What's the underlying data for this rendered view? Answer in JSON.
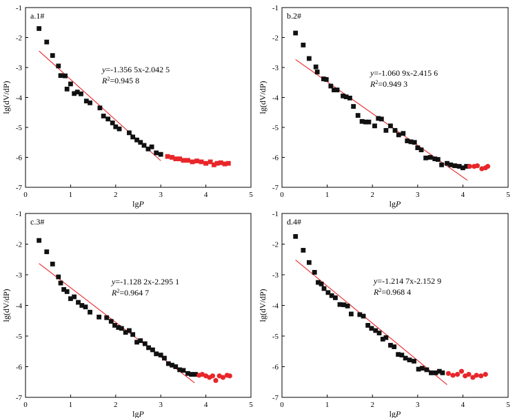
{
  "colors": {
    "black_points": "#111111",
    "red_points": "#e8262a",
    "fit_line": "#e8262a",
    "axis": "#000000"
  },
  "chart_data": [
    {
      "type": "scatter",
      "panel_label": "a.1#",
      "xlabel_prefix": "lg",
      "xlabel_var": "P",
      "ylabel": "lg(dV/dP)",
      "xlim": [
        0,
        5
      ],
      "ylim": [
        -7,
        -1
      ],
      "xticks": [
        0,
        1,
        2,
        3,
        4,
        5
      ],
      "yticks": [
        -1,
        -2,
        -3,
        -4,
        -5,
        -6,
        -7
      ],
      "equation_y": "y",
      "equation_rest": "=-1.356 5x-2.042 5",
      "r2_text": "=0.945 8",
      "red_marker": "square",
      "fit": {
        "slope": -1.3565,
        "intercept": -2.0425,
        "x_range": [
          0.3,
          3.0
        ]
      },
      "series": [
        {
          "marker": "square",
          "color": "black",
          "points": [
            [
              0.3,
              -1.7
            ],
            [
              0.47,
              -2.15
            ],
            [
              0.6,
              -2.6
            ],
            [
              0.73,
              -2.95
            ],
            [
              0.78,
              -3.27
            ],
            [
              0.88,
              -3.28
            ],
            [
              0.92,
              -3.72
            ],
            [
              1.0,
              -3.55
            ],
            [
              1.08,
              -3.87
            ],
            [
              1.15,
              -3.82
            ],
            [
              1.23,
              -3.88
            ],
            [
              1.35,
              -4.12
            ],
            [
              1.43,
              -4.18
            ],
            [
              1.65,
              -4.35
            ],
            [
              1.73,
              -4.62
            ],
            [
              1.83,
              -4.72
            ],
            [
              1.93,
              -4.85
            ],
            [
              2.0,
              -4.98
            ],
            [
              2.08,
              -5.05
            ],
            [
              2.3,
              -5.18
            ],
            [
              2.38,
              -5.32
            ],
            [
              2.47,
              -5.42
            ],
            [
              2.55,
              -5.5
            ],
            [
              2.63,
              -5.6
            ],
            [
              2.72,
              -5.72
            ],
            [
              2.8,
              -5.65
            ],
            [
              2.9,
              -5.85
            ],
            [
              3.0,
              -5.9
            ]
          ]
        },
        {
          "marker": "square",
          "color": "red",
          "points": [
            [
              3.15,
              -5.97
            ],
            [
              3.25,
              -6.0
            ],
            [
              3.33,
              -6.05
            ],
            [
              3.42,
              -6.05
            ],
            [
              3.5,
              -6.1
            ],
            [
              3.6,
              -6.1
            ],
            [
              3.7,
              -6.15
            ],
            [
              3.8,
              -6.12
            ],
            [
              3.9,
              -6.15
            ],
            [
              4.0,
              -6.2
            ],
            [
              4.1,
              -6.15
            ],
            [
              4.18,
              -6.25
            ],
            [
              4.25,
              -6.2
            ],
            [
              4.33,
              -6.18
            ],
            [
              4.42,
              -6.22
            ],
            [
              4.5,
              -6.2
            ]
          ]
        }
      ]
    },
    {
      "type": "scatter",
      "panel_label": "b.2#",
      "xlabel_prefix": "lg",
      "xlabel_var": "P",
      "ylabel": "lg(dV/dP)",
      "xlim": [
        0,
        5
      ],
      "ylim": [
        -7,
        -1
      ],
      "xticks": [
        0,
        1,
        2,
        3,
        4,
        5
      ],
      "yticks": [
        -1,
        -2,
        -3,
        -4,
        -5,
        -6,
        -7
      ],
      "equation_y": "y",
      "equation_rest": "=-1.060 9x-2.415 6",
      "r2_text": "=0.949 3",
      "red_marker": "circle",
      "fit": {
        "slope": -1.0609,
        "intercept": -2.4156,
        "x_range": [
          0.3,
          4.1
        ]
      },
      "series": [
        {
          "marker": "square",
          "color": "black",
          "points": [
            [
              0.3,
              -1.85
            ],
            [
              0.47,
              -2.25
            ],
            [
              0.6,
              -2.7
            ],
            [
              0.75,
              -2.98
            ],
            [
              0.78,
              -3.15
            ],
            [
              0.92,
              -3.38
            ],
            [
              0.98,
              -3.4
            ],
            [
              1.08,
              -3.62
            ],
            [
              1.15,
              -3.75
            ],
            [
              1.22,
              -3.75
            ],
            [
              1.35,
              -3.95
            ],
            [
              1.42,
              -3.98
            ],
            [
              1.5,
              -4.02
            ],
            [
              1.58,
              -4.3
            ],
            [
              1.68,
              -4.6
            ],
            [
              1.77,
              -4.8
            ],
            [
              1.85,
              -4.82
            ],
            [
              1.92,
              -4.82
            ],
            [
              2.05,
              -4.95
            ],
            [
              2.13,
              -4.7
            ],
            [
              2.2,
              -4.72
            ],
            [
              2.3,
              -5.1
            ],
            [
              2.4,
              -4.95
            ],
            [
              2.5,
              -5.1
            ],
            [
              2.58,
              -5.25
            ],
            [
              2.68,
              -5.2
            ],
            [
              2.77,
              -5.45
            ],
            [
              2.85,
              -5.48
            ],
            [
              2.93,
              -5.5
            ],
            [
              3.0,
              -5.68
            ],
            [
              3.08,
              -5.75
            ],
            [
              3.18,
              -6.02
            ],
            [
              3.28,
              -6.0
            ],
            [
              3.38,
              -6.05
            ],
            [
              3.45,
              -6.07
            ],
            [
              3.53,
              -6.25
            ],
            [
              3.65,
              -6.2
            ],
            [
              3.73,
              -6.25
            ],
            [
              3.82,
              -6.28
            ],
            [
              3.92,
              -6.3
            ],
            [
              4.0,
              -6.35
            ],
            [
              4.08,
              -6.3
            ]
          ]
        },
        {
          "marker": "circle",
          "color": "red",
          "points": [
            [
              4.15,
              -6.3
            ],
            [
              4.25,
              -6.3
            ],
            [
              4.32,
              -6.28
            ],
            [
              4.42,
              -6.38
            ],
            [
              4.5,
              -6.35
            ],
            [
              4.55,
              -6.3
            ]
          ]
        }
      ]
    },
    {
      "type": "scatter",
      "panel_label": "c.3#",
      "xlabel_prefix": "lg",
      "xlabel_var": "P",
      "ylabel": "lg(dV/dP)",
      "xlim": [
        0,
        5
      ],
      "ylim": [
        -7,
        -1
      ],
      "xticks": [
        0,
        1,
        2,
        3,
        4,
        5
      ],
      "yticks": [
        -1,
        -2,
        -3,
        -4,
        -5,
        -6,
        -7
      ],
      "equation_y": "y",
      "equation_rest": "=-1.128 2x-2.295 1",
      "r2_text": "=0.964 7",
      "red_marker": "circle",
      "fit": {
        "slope": -1.1282,
        "intercept": -2.2951,
        "x_range": [
          0.3,
          3.75
        ]
      },
      "series": [
        {
          "marker": "square",
          "color": "black",
          "points": [
            [
              0.3,
              -1.88
            ],
            [
              0.47,
              -2.25
            ],
            [
              0.6,
              -2.65
            ],
            [
              0.73,
              -3.07
            ],
            [
              0.78,
              -3.27
            ],
            [
              0.85,
              -3.48
            ],
            [
              0.92,
              -3.55
            ],
            [
              1.0,
              -3.78
            ],
            [
              1.08,
              -3.72
            ],
            [
              1.17,
              -3.9
            ],
            [
              1.25,
              -4.0
            ],
            [
              1.33,
              -4.05
            ],
            [
              1.43,
              -4.22
            ],
            [
              1.63,
              -4.38
            ],
            [
              1.8,
              -4.4
            ],
            [
              1.9,
              -4.52
            ],
            [
              1.98,
              -4.65
            ],
            [
              2.06,
              -4.72
            ],
            [
              2.13,
              -4.75
            ],
            [
              2.22,
              -4.88
            ],
            [
              2.3,
              -4.82
            ],
            [
              2.38,
              -4.95
            ],
            [
              2.47,
              -5.2
            ],
            [
              2.55,
              -5.15
            ],
            [
              2.65,
              -5.25
            ],
            [
              2.73,
              -5.38
            ],
            [
              2.82,
              -5.45
            ],
            [
              2.9,
              -5.58
            ],
            [
              3.0,
              -5.62
            ],
            [
              3.08,
              -5.72
            ],
            [
              3.17,
              -5.9
            ],
            [
              3.25,
              -5.95
            ],
            [
              3.33,
              -6.0
            ],
            [
              3.42,
              -6.1
            ],
            [
              3.5,
              -6.12
            ],
            [
              3.6,
              -6.22
            ],
            [
              3.68,
              -6.25
            ],
            [
              3.77,
              -6.25
            ]
          ]
        },
        {
          "marker": "circle",
          "color": "red",
          "points": [
            [
              3.85,
              -6.28
            ],
            [
              3.92,
              -6.25
            ],
            [
              4.0,
              -6.3
            ],
            [
              4.08,
              -6.35
            ],
            [
              4.15,
              -6.3
            ],
            [
              4.22,
              -6.45
            ],
            [
              4.3,
              -6.3
            ],
            [
              4.38,
              -6.35
            ],
            [
              4.47,
              -6.28
            ],
            [
              4.53,
              -6.3
            ]
          ]
        }
      ]
    },
    {
      "type": "scatter",
      "panel_label": "d.4#",
      "xlabel_prefix": "lg",
      "xlabel_var": "P",
      "ylabel": "lg(dV/dP)",
      "xlim": [
        0,
        5
      ],
      "ylim": [
        -7,
        -1
      ],
      "xticks": [
        0,
        1,
        2,
        3,
        4,
        5
      ],
      "yticks": [
        -1,
        -2,
        -3,
        -4,
        -5,
        -6,
        -7
      ],
      "equation_y": "y",
      "equation_rest": "=-1.214 7x-2.152 9",
      "r2_text": "=0.968 4",
      "red_marker": "circle",
      "fit": {
        "slope": -1.2147,
        "intercept": -2.1529,
        "x_range": [
          0.3,
          3.65
        ]
      },
      "series": [
        {
          "marker": "square",
          "color": "black",
          "points": [
            [
              0.3,
              -1.75
            ],
            [
              0.47,
              -2.2
            ],
            [
              0.6,
              -2.6
            ],
            [
              0.72,
              -2.92
            ],
            [
              0.8,
              -3.25
            ],
            [
              0.87,
              -3.3
            ],
            [
              0.93,
              -3.45
            ],
            [
              1.02,
              -3.58
            ],
            [
              1.1,
              -3.68
            ],
            [
              1.18,
              -3.75
            ],
            [
              1.28,
              -3.97
            ],
            [
              1.37,
              -3.98
            ],
            [
              1.45,
              -4.02
            ],
            [
              1.53,
              -4.28
            ],
            [
              1.72,
              -4.3
            ],
            [
              1.8,
              -4.35
            ],
            [
              1.9,
              -4.65
            ],
            [
              1.98,
              -4.75
            ],
            [
              2.07,
              -4.82
            ],
            [
              2.15,
              -4.9
            ],
            [
              2.23,
              -5.1
            ],
            [
              2.3,
              -5.05
            ],
            [
              2.4,
              -5.3
            ],
            [
              2.48,
              -5.35
            ],
            [
              2.57,
              -5.6
            ],
            [
              2.65,
              -5.62
            ],
            [
              2.73,
              -5.72
            ],
            [
              2.82,
              -5.78
            ],
            [
              2.92,
              -5.82
            ],
            [
              3.02,
              -6.08
            ],
            [
              3.1,
              -6.05
            ],
            [
              3.2,
              -6.1
            ],
            [
              3.3,
              -6.2
            ],
            [
              3.4,
              -6.2
            ],
            [
              3.48,
              -6.15
            ],
            [
              3.55,
              -6.2
            ]
          ]
        },
        {
          "marker": "circle",
          "color": "red",
          "points": [
            [
              3.68,
              -6.22
            ],
            [
              3.78,
              -6.28
            ],
            [
              3.88,
              -6.25
            ],
            [
              3.97,
              -6.15
            ],
            [
              4.05,
              -6.3
            ],
            [
              4.13,
              -6.25
            ],
            [
              4.22,
              -6.35
            ],
            [
              4.3,
              -6.28
            ],
            [
              4.4,
              -6.3
            ],
            [
              4.5,
              -6.25
            ]
          ]
        }
      ]
    }
  ]
}
